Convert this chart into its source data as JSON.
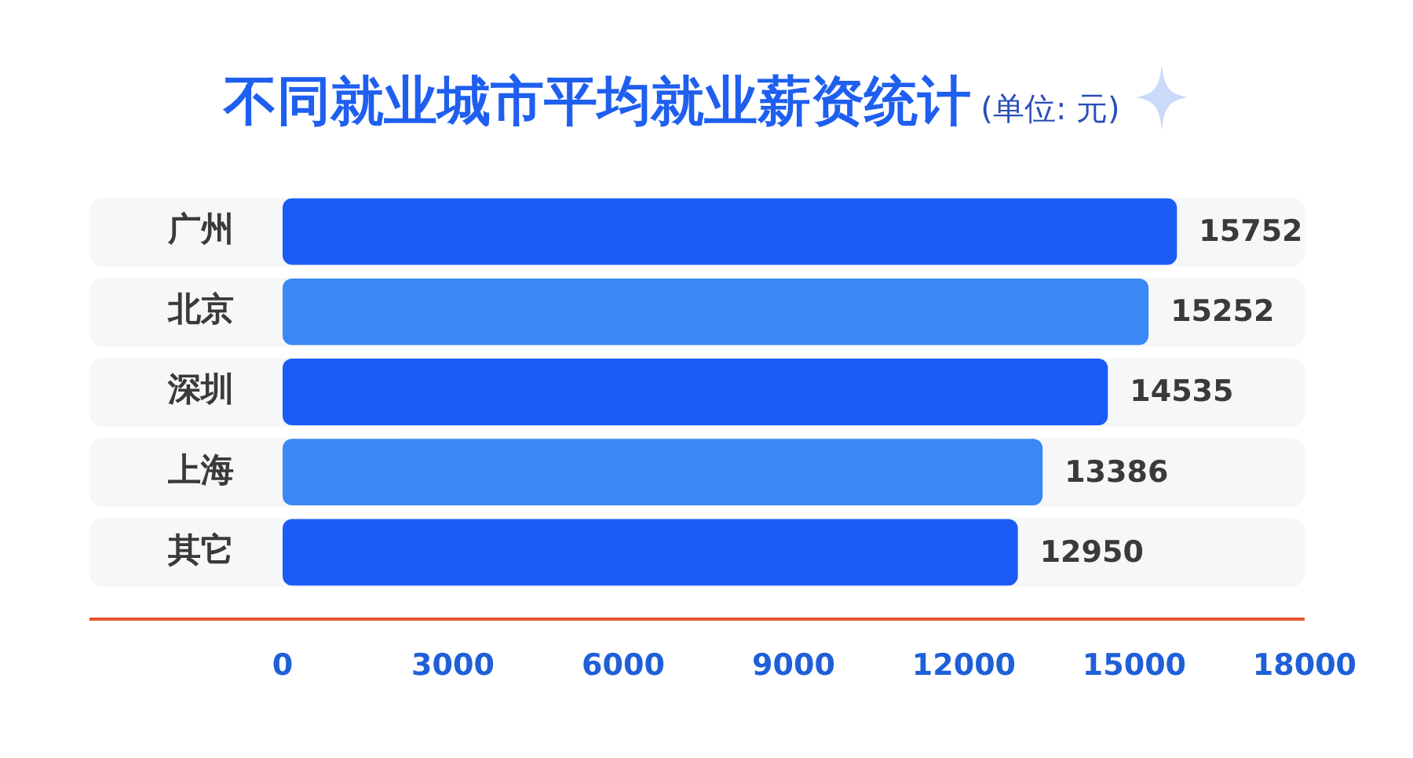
{
  "chart_data": {
    "type": "bar",
    "orientation": "horizontal",
    "title": "不同就业城市平均就业薪资统计",
    "subtitle": "(单位: 元)",
    "categories": [
      "广州",
      "北京",
      "深圳",
      "上海",
      "其它"
    ],
    "values": [
      15752,
      15252,
      14535,
      13386,
      12950
    ],
    "colors": [
      "#1a5cf5",
      "#3a88f5",
      "#1a5cf5",
      "#3a88f5",
      "#1a5cf5"
    ],
    "xlim": [
      0,
      18000
    ],
    "xticks": [
      0,
      3000,
      6000,
      9000,
      12000,
      15000,
      18000
    ],
    "data_labels": true
  }
}
